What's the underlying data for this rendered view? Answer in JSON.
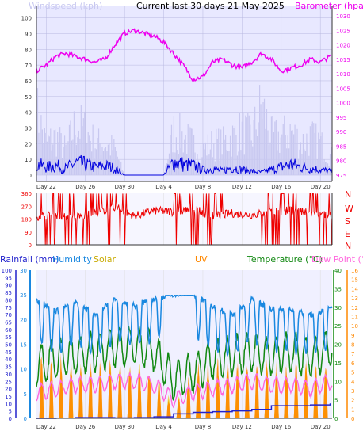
{
  "header": {
    "title": "Current last 30 days 21 May 2025",
    "left_label": "Windspeed (kph)",
    "right_label": "Barometer (hpa)"
  },
  "direction_labels": [
    "N",
    "W",
    "S",
    "E",
    "N"
  ],
  "bottom_labels": {
    "rainfall": "Rainfall (mm)",
    "humidity": "Humidity",
    "solar": "Solar",
    "uv": "UV",
    "temperature": "Temperature (°C)",
    "dewpoint": "Dew Point (°C)"
  },
  "colors": {
    "windspeed": "#0000dd",
    "gust": "#c8c8f0",
    "barometer": "#ee00ee",
    "direction": "#ee0000",
    "humidity": "#1a88e0",
    "solar": "#e8c800",
    "uv": "#ff8800",
    "temperature": "#118811",
    "dewpoint": "#ff66dd",
    "rainfall": "#2222cc",
    "panel_bg": "#e8e8ff"
  },
  "chart_data": [
    {
      "type": "line",
      "categories": [
        "Day 22",
        "Day 26",
        "Day 30",
        "Day 4",
        "Day 8",
        "Day 12",
        "Day 16",
        "Day 20"
      ],
      "ylabel": "Windspeed (kph)",
      "ylim": [
        0,
        100
      ],
      "yticks_left": [
        0,
        10,
        20,
        30,
        40,
        50,
        60,
        70,
        80,
        90,
        100
      ],
      "y2label": "Barometer (hpa)",
      "y2lim": [
        975,
        1030
      ],
      "yticks_right": [
        975,
        980,
        985,
        990,
        995,
        1000,
        1005,
        1010,
        1015,
        1020,
        1025,
        1030
      ],
      "grid": true,
      "series": [
        {
          "name": "Barometer (hpa)",
          "axis": "right",
          "x": [
            21,
            22,
            23,
            24,
            25,
            26,
            27,
            28,
            29,
            30,
            31,
            32,
            33,
            34,
            35,
            36,
            37,
            38,
            39,
            40,
            41,
            42,
            43,
            44,
            45,
            46,
            47,
            48,
            49,
            50,
            51
          ],
          "values": [
            1011,
            1013,
            1016,
            1017,
            1016,
            1015,
            1014,
            1015,
            1020,
            1024,
            1025,
            1024,
            1023,
            1021,
            1017,
            1013,
            1008,
            1009,
            1014,
            1015,
            1013,
            1012,
            1014,
            1017,
            1015,
            1011,
            1012,
            1013,
            1015,
            1014,
            1016
          ]
        },
        {
          "name": "Windspeed (kph)",
          "axis": "left",
          "x": [
            21,
            22,
            23,
            24,
            25,
            26,
            27,
            28,
            29,
            30,
            31,
            32,
            33,
            34,
            35,
            36,
            37,
            38,
            39,
            40,
            41,
            42,
            43,
            44,
            45,
            46,
            47,
            48,
            49,
            50,
            51
          ],
          "values": [
            8,
            6,
            7,
            5,
            9,
            8,
            6,
            7,
            5,
            0,
            0,
            0,
            0,
            0,
            10,
            8,
            7,
            4,
            5,
            3,
            6,
            4,
            3,
            2,
            4,
            6,
            8,
            6,
            5,
            4,
            3
          ]
        },
        {
          "name": "Gust (kph)",
          "axis": "left",
          "x": [
            21,
            22,
            23,
            24,
            25,
            26,
            27,
            28,
            29,
            30,
            31,
            32,
            33,
            34,
            35,
            36,
            37,
            38,
            39,
            40,
            41,
            42,
            43,
            44,
            45,
            46,
            47,
            48,
            49,
            50,
            51
          ],
          "values": [
            50,
            25,
            30,
            20,
            40,
            35,
            25,
            25,
            20,
            0,
            0,
            0,
            0,
            0,
            35,
            30,
            25,
            20,
            25,
            25,
            30,
            35,
            30,
            55,
            30,
            30,
            35,
            25,
            30,
            25,
            15
          ]
        }
      ]
    },
    {
      "type": "scatter",
      "categories": [
        "Day 22",
        "Day 26",
        "Day 30",
        "Day 4",
        "Day 8",
        "Day 12",
        "Day 16",
        "Day 20"
      ],
      "ylim": [
        0,
        360
      ],
      "yticks_left": [
        0,
        90,
        180,
        270,
        360
      ],
      "series": [
        {
          "name": "Wind direction",
          "x": [
            21,
            23,
            25,
            27,
            29,
            31,
            33,
            35,
            37,
            39,
            41,
            43,
            45,
            47,
            49,
            51
          ],
          "values": [
            200,
            210,
            190,
            220,
            260,
            200,
            240,
            230,
            250,
            200,
            220,
            210,
            230,
            240,
            220,
            200
          ]
        }
      ]
    },
    {
      "type": "line",
      "categories": [
        "Day 22",
        "Day 26",
        "Day 30",
        "Day 4",
        "Day 8",
        "Day 12",
        "Day 16",
        "Day 20"
      ],
      "y_axes": {
        "rainfall_mm": {
          "ylim": [
            0,
            100
          ],
          "ticks": [
            0,
            5,
            10,
            15,
            20,
            25,
            30,
            35,
            40,
            45,
            50,
            55,
            60,
            65,
            70,
            75,
            80,
            85,
            90,
            95,
            100
          ]
        },
        "humidity": {
          "ylim": [
            0,
            30
          ],
          "ticks": [
            0,
            5,
            10,
            15,
            20,
            25,
            30
          ]
        },
        "temperature_c": {
          "ylim": [
            0,
            40
          ],
          "ticks": [
            0,
            5,
            10,
            15,
            20,
            25,
            30,
            35,
            40
          ]
        },
        "uv": {
          "ylim": [
            0,
            16
          ],
          "ticks": [
            0,
            1,
            2,
            3,
            4,
            5,
            6,
            7,
            8,
            9,
            10,
            11,
            12,
            13,
            14,
            15,
            16
          ]
        }
      },
      "series": [
        {
          "name": "Humidity",
          "x": [
            21,
            23,
            25,
            27,
            29,
            31,
            33,
            35,
            37,
            39,
            41,
            43,
            45,
            47,
            49,
            51
          ],
          "values": [
            80,
            72,
            78,
            70,
            80,
            76,
            81,
            83,
            84,
            75,
            70,
            80,
            74,
            73,
            70,
            74
          ]
        },
        {
          "name": "Temperature (°C)",
          "x": [
            21,
            23,
            25,
            27,
            29,
            31,
            33,
            35,
            37,
            39,
            41,
            43,
            45,
            47,
            49,
            51
          ],
          "values": [
            14,
            16,
            17,
            18,
            19,
            20,
            18,
            10,
            12,
            16,
            17,
            18,
            17,
            18,
            16,
            19
          ]
        },
        {
          "name": "Dew Point (°C)",
          "x": [
            21,
            23,
            25,
            27,
            29,
            31,
            33,
            35,
            37,
            39,
            41,
            43,
            45,
            47,
            49,
            51
          ],
          "values": [
            7,
            8,
            9,
            9,
            10,
            10,
            9,
            5,
            7,
            8,
            9,
            10,
            9,
            9,
            8,
            10
          ]
        },
        {
          "name": "UV",
          "x": [
            21,
            23,
            25,
            27,
            29,
            31,
            33,
            35,
            37,
            39,
            41,
            43,
            45,
            47,
            49,
            51
          ],
          "values": [
            7,
            7,
            6,
            6,
            6,
            6,
            5,
            1,
            6,
            6,
            6,
            6,
            6,
            6,
            6,
            6
          ]
        },
        {
          "name": "Solar",
          "x": [
            21,
            23,
            25,
            27,
            29,
            31,
            33,
            35,
            37,
            39,
            41,
            43,
            45,
            47,
            49,
            51
          ],
          "values": [
            14,
            13,
            15,
            12,
            14,
            13,
            13,
            3,
            12,
            14,
            13,
            12,
            14,
            12,
            13,
            13
          ]
        },
        {
          "name": "Rainfall (mm)",
          "x": [
            21,
            23,
            25,
            27,
            29,
            31,
            33,
            35,
            37,
            39,
            41,
            43,
            45,
            47,
            49,
            51
          ],
          "values": [
            0,
            0.3,
            1,
            1,
            0.5,
            1,
            2,
            6,
            8,
            9,
            10,
            12,
            17,
            17,
            18,
            20
          ]
        }
      ]
    }
  ]
}
